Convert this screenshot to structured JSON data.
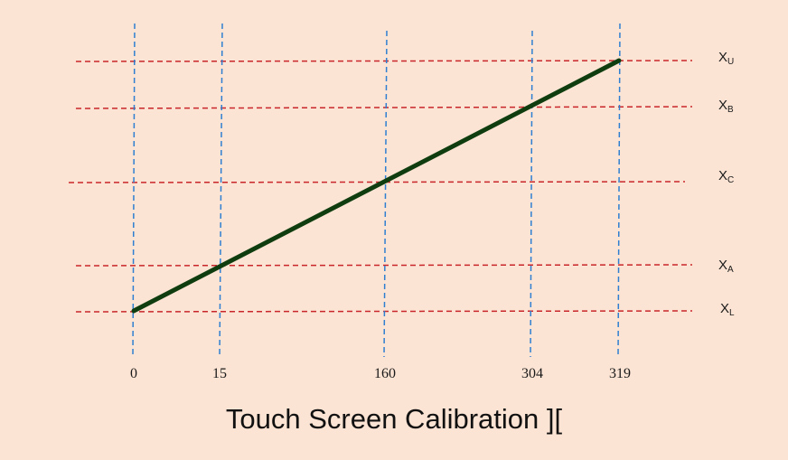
{
  "title": "Touch Screen Calibration ][",
  "chart_data": {
    "type": "line",
    "x_ticks": [
      "0",
      "15",
      "160",
      "304",
      "319"
    ],
    "levels": [
      {
        "name": "X",
        "sub": "U"
      },
      {
        "name": "X",
        "sub": "B"
      },
      {
        "name": "X",
        "sub": "C"
      },
      {
        "name": "X",
        "sub": "A"
      },
      {
        "name": "X",
        "sub": "L"
      }
    ],
    "line": {
      "from": {
        "x": "0",
        "level": "XL"
      },
      "to": {
        "x": "319",
        "level": "XU"
      }
    },
    "colors": {
      "background": "#fce4d4",
      "line": "#0f3d0f",
      "vertical_guides": "#2e7fd1",
      "horizontal_guides": "#c8262a"
    }
  }
}
